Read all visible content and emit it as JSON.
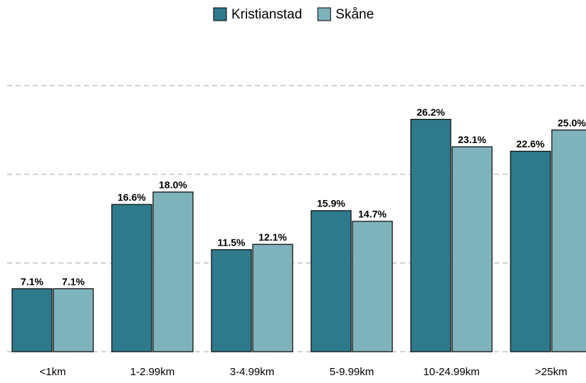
{
  "chart_data": {
    "type": "bar",
    "categories": [
      "<1km",
      "1-2.99km",
      "3-4.99km",
      "5-9.99km",
      "10-24.99km",
      ">25km"
    ],
    "series": [
      {
        "name": "Kristianstad",
        "color": "#2e7a8c",
        "values": [
          7.1,
          16.6,
          11.5,
          15.9,
          26.2,
          22.6
        ],
        "value_labels": [
          "7.1%",
          "16.6%",
          "11.5%",
          "15.9%",
          "26.2%",
          "22.6%"
        ]
      },
      {
        "name": "Skåne",
        "color": "#7fb3bc",
        "values": [
          7.1,
          18.0,
          12.1,
          14.7,
          23.1,
          25.0
        ],
        "value_labels": [
          "7.1%",
          "18.0%",
          "12.1%",
          "14.7%",
          "23.1%",
          "25.0%"
        ]
      }
    ],
    "ylim": [
      0,
      35
    ],
    "yticks": [
      0,
      10,
      20,
      30
    ],
    "grid": true,
    "legend": "top"
  }
}
